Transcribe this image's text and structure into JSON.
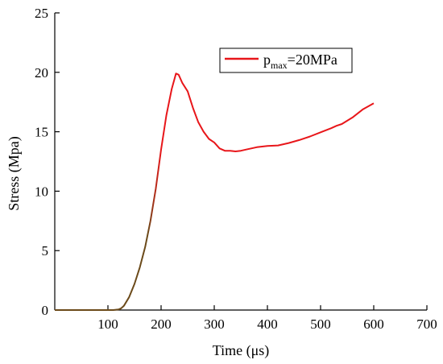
{
  "chart_data": {
    "type": "line",
    "xlabel": "Time (μs)",
    "ylabel": "Stress (Mpa)",
    "xlim": [
      0,
      700
    ],
    "ylim": [
      0,
      25
    ],
    "xticks": [
      100,
      200,
      300,
      400,
      500,
      600,
      700
    ],
    "yticks": [
      0,
      5,
      10,
      15,
      20,
      25
    ],
    "grid": false,
    "legend_position": "top-right",
    "series": [
      {
        "legend_main": "p",
        "legend_sub": "max",
        "legend_rest": "=20MPa",
        "color": "#e8161a",
        "start_color": "#6b4a1a",
        "x": [
          0,
          100,
          110,
          120,
          125,
          130,
          140,
          150,
          160,
          170,
          180,
          190,
          200,
          210,
          220,
          228,
          233,
          240,
          250,
          260,
          270,
          280,
          290,
          300,
          310,
          320,
          330,
          340,
          350,
          360,
          380,
          400,
          420,
          440,
          460,
          480,
          500,
          520,
          530,
          540,
          560,
          580,
          600
        ],
        "y": [
          0,
          0,
          0,
          0.05,
          0.15,
          0.35,
          1.1,
          2.2,
          3.6,
          5.3,
          7.5,
          10.2,
          13.5,
          16.4,
          18.6,
          19.9,
          19.8,
          19.1,
          18.4,
          17.0,
          15.8,
          15.0,
          14.4,
          14.1,
          13.6,
          13.4,
          13.4,
          13.35,
          13.4,
          13.5,
          13.7,
          13.8,
          13.85,
          14.05,
          14.3,
          14.6,
          14.95,
          15.3,
          15.5,
          15.65,
          16.2,
          16.9,
          17.4
        ]
      }
    ]
  }
}
